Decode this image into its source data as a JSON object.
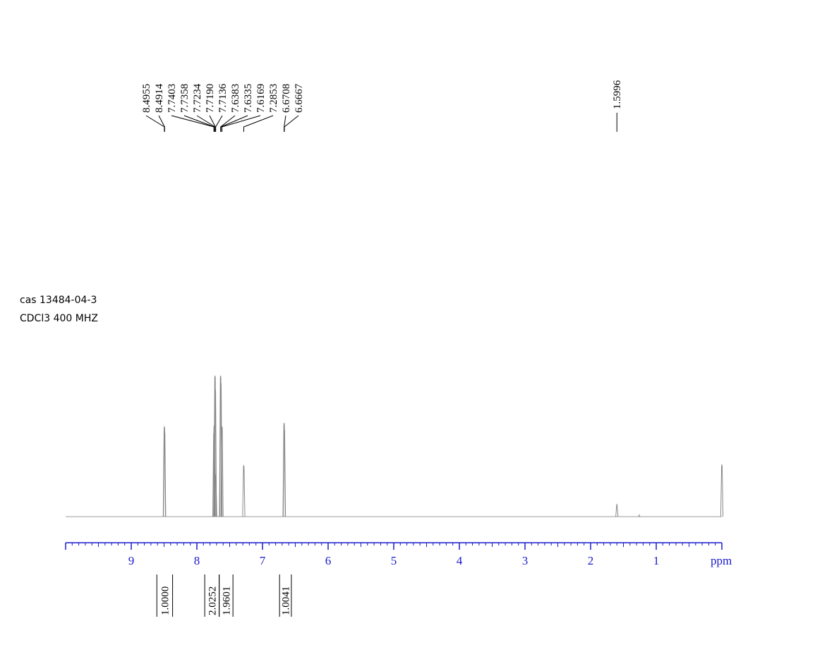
{
  "chart_data": {
    "type": "spectrum",
    "annotations": [
      "cas  13484-04-3",
      "CDCl3 400 MHZ"
    ],
    "x_label": "ppm",
    "xlim": [
      10,
      0
    ],
    "xticks": [
      9,
      8,
      7,
      6,
      5,
      4,
      3,
      2,
      1
    ],
    "peaks": {
      "x": [
        8.4955,
        8.4914,
        7.7403,
        7.7358,
        7.7234,
        7.719,
        7.7136,
        7.6383,
        7.6335,
        7.6169,
        7.2853,
        6.6708,
        6.6667,
        1.5996,
        1.26,
        0
      ],
      "values": [
        128,
        120,
        120,
        130,
        200,
        180,
        60,
        200,
        190,
        128,
        73,
        133,
        125,
        18,
        3,
        74
      ]
    },
    "peak_labels": [
      {
        "value": 8.4955,
        "label": "8.4955"
      },
      {
        "value": 8.4914,
        "label": "8.4914"
      },
      {
        "value": 7.7403,
        "label": "7.7403"
      },
      {
        "value": 7.7358,
        "label": "7.7358"
      },
      {
        "value": 7.7234,
        "label": "7.7234"
      },
      {
        "value": 7.719,
        "label": "7.7190"
      },
      {
        "value": 7.7136,
        "label": "7.7136"
      },
      {
        "value": 7.6383,
        "label": "7.6383"
      },
      {
        "value": 7.6335,
        "label": "7.6335"
      },
      {
        "value": 7.6169,
        "label": "7.6169"
      },
      {
        "value": 7.2853,
        "label": "7.2853"
      },
      {
        "value": 6.6708,
        "label": "6.6708"
      },
      {
        "value": 6.6667,
        "label": "6.6667"
      },
      {
        "value": 1.5996,
        "label": "1.5996"
      }
    ],
    "integrals": [
      {
        "value": 1,
        "label": "1.0000",
        "range": [
          8.61,
          8.37
        ]
      },
      {
        "value": 2.0252,
        "label": "2.0252",
        "range": [
          7.88,
          7.66
        ]
      },
      {
        "value": 1.9601,
        "label": "1.9601",
        "range": [
          7.66,
          7.45
        ]
      },
      {
        "value": 1.0041,
        "label": "1.0041",
        "range": [
          6.74,
          6.56
        ]
      }
    ]
  }
}
